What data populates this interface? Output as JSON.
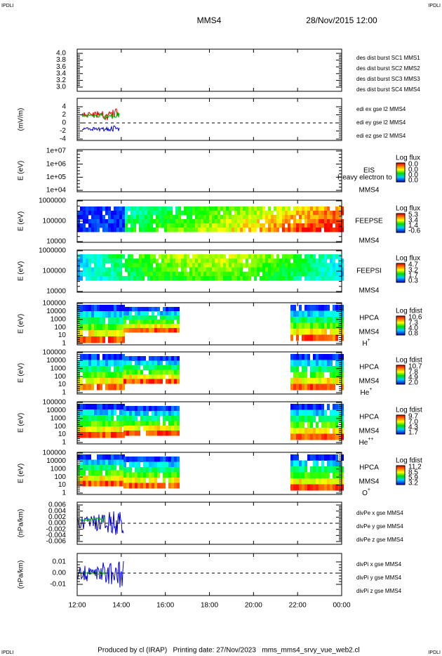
{
  "header": {
    "corner_left": "IPDLI",
    "corner_right": "IPDLI",
    "spacecraft": "MMS4",
    "date": "28/Nov/2015 12:00"
  },
  "footer": {
    "corner_left": "IPDLI",
    "corner_right": "IPDLI",
    "credit": "Produced by cl (IRAP)   Printing date: 27/Nov/2023   mms_mms4_srvy_vue_web2.cl"
  },
  "xticks": [
    "12:00",
    "14:00",
    "16:00",
    "18:00",
    "20:00",
    "22:00",
    "00:00"
  ],
  "panels": [
    {
      "yticks": [
        "4.0",
        "3.8",
        "3.6",
        "3.4",
        "3.2",
        "3.0"
      ],
      "legend": [
        {
          "text": "des dist burst SC1 MMS1",
          "color": "#0000cc"
        },
        {
          "text": "des dist burst SC2 MMS2",
          "color": "#cc00cc"
        },
        {
          "text": "des dist burst SC3 MMS3",
          "color": "#cc0000"
        },
        {
          "text": "des dist burst SC4 MMS4",
          "color": "#00bb00"
        }
      ]
    },
    {
      "ylabel": "(mV/m)",
      "yticks": [
        "4",
        "2",
        "0",
        "-2",
        "-4"
      ],
      "legend": [
        {
          "text": "edi ex gse l2 MMS4",
          "color": "#cc0000"
        },
        {
          "text": "edi ey gse l2 MMS4",
          "color": "#00bb00"
        },
        {
          "text": "edi ez gse l2 MMS4",
          "color": "#0000cc"
        }
      ]
    },
    {
      "ylabel": "E (eV)",
      "yticks": [
        "1e+07",
        "1e+06",
        "1e+05",
        "1e+04"
      ],
      "instrument": "EIS",
      "spacecraft": "MMS4",
      "overlay": "Heavy electron to",
      "colorbar": {
        "title": "Log flux",
        "labels": [
          "0.0",
          "0.0",
          "0.0",
          "0.0"
        ]
      }
    },
    {
      "ylabel": "E (eV)",
      "yticks": [
        "1000000",
        "100000",
        "10000"
      ],
      "instrument": "FEEPSE",
      "spacecraft": "MMS4",
      "colorbar": {
        "title": "Log flux",
        "labels": [
          "5.3",
          "3.4",
          "1.4",
          "-0.6"
        ]
      }
    },
    {
      "ylabel": "E (eV)",
      "yticks": [
        "1000000",
        "100000",
        "10000"
      ],
      "instrument": "FEEPSI",
      "spacecraft": "MMS4",
      "colorbar": {
        "title": "Log flux",
        "labels": [
          "4.7",
          "3.2",
          "1.7",
          "0.3"
        ]
      }
    },
    {
      "ylabel": "E (eV)",
      "yticks": [
        "100000",
        "10000",
        "1000",
        "100",
        "10",
        "1"
      ],
      "instrument": "HPCA",
      "spacecraft": "MMS4",
      "species": "H",
      "charge": "+",
      "colorbar": {
        "title": "Log fdist",
        "labels": [
          "10.6",
          "7.3",
          "4.0",
          "0.8"
        ]
      }
    },
    {
      "ylabel": "E (eV)",
      "yticks": [
        "100000",
        "10000",
        "1000",
        "100",
        "10",
        "1"
      ],
      "instrument": "HPCA",
      "spacecraft": "MMS4",
      "species": "He",
      "charge": "+",
      "colorbar": {
        "title": "Log fdist",
        "labels": [
          "10.7",
          "7.8",
          "4.9",
          "2.0"
        ]
      }
    },
    {
      "ylabel": "E (eV)",
      "yticks": [
        "100000",
        "10000",
        "1000",
        "100",
        "10",
        "1"
      ],
      "instrument": "HPCA",
      "spacecraft": "MMS4",
      "species": "He",
      "charge": "++",
      "colorbar": {
        "title": "Log fdist",
        "labels": [
          "9.7",
          "7.0",
          "4.3",
          "1.7"
        ]
      }
    },
    {
      "ylabel": "E (eV)",
      "yticks": [
        "100000",
        "10000",
        "1000",
        "100",
        "10",
        "1"
      ],
      "instrument": "HPCA",
      "spacecraft": "MMS4",
      "species": "O",
      "charge": "+",
      "colorbar": {
        "title": "Log fdist",
        "labels": [
          "11.2",
          "8.5",
          "5.9",
          "3.2"
        ]
      }
    },
    {
      "ylabel": "(nPa/km)",
      "yticks": [
        "0.006",
        "0.004",
        "0.002",
        "0.000",
        "-0.002",
        "-0.004",
        "-0.006"
      ],
      "legend": [
        {
          "text": "divPe x gse MMS4",
          "color": "#cc0000"
        },
        {
          "text": "divPe y gse MMS4",
          "color": "#00bb00"
        },
        {
          "text": "divPe z gse MMS4",
          "color": "#0000cc"
        }
      ]
    },
    {
      "ylabel": "(nPa/km)",
      "yticks": [
        "0.01",
        "0.00",
        "-0.01"
      ],
      "legend": [
        {
          "text": "divPi x gse MMS4",
          "color": "#cc0000"
        },
        {
          "text": "divPi y gse MMS4",
          "color": "#00bb00"
        },
        {
          "text": "divPi z gse MMS4",
          "color": "#0000cc"
        }
      ]
    }
  ]
}
